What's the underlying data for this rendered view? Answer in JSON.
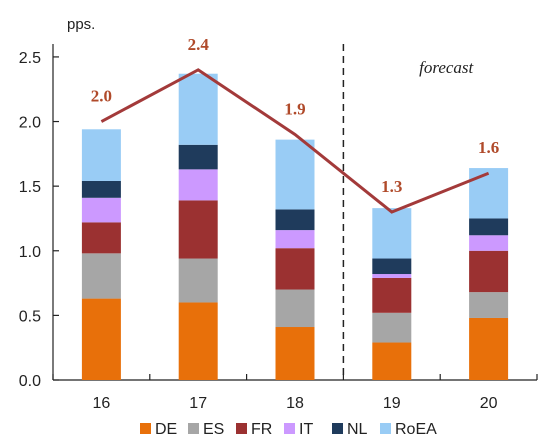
{
  "chart_data": {
    "type": "bar",
    "stacked": true,
    "unit_label": "pps.",
    "categories": [
      "16",
      "17",
      "18",
      "19",
      "20"
    ],
    "series": [
      {
        "name": "DE",
        "color": "#e8700a",
        "values": [
          0.63,
          0.6,
          0.41,
          0.29,
          0.48
        ]
      },
      {
        "name": "ES",
        "color": "#a6a6a6",
        "values": [
          0.35,
          0.34,
          0.29,
          0.23,
          0.2
        ]
      },
      {
        "name": "FR",
        "color": "#9b3131",
        "values": [
          0.24,
          0.45,
          0.32,
          0.27,
          0.32
        ]
      },
      {
        "name": "IT",
        "color": "#cc99ff",
        "values": [
          0.19,
          0.24,
          0.14,
          0.03,
          0.12
        ]
      },
      {
        "name": "NL",
        "color": "#1f3b5c",
        "values": [
          0.13,
          0.19,
          0.16,
          0.12,
          0.13
        ]
      },
      {
        "name": "RoEA",
        "color": "#99ccf5",
        "values": [
          0.4,
          0.55,
          0.54,
          0.39,
          0.39
        ]
      }
    ],
    "line": {
      "color": "#a33a3a",
      "values": [
        2.0,
        2.4,
        1.9,
        1.3,
        1.6
      ]
    },
    "data_labels": [
      "2.0",
      "2.4",
      "1.9",
      "1.3",
      "1.6"
    ],
    "y_ticks": [
      "0.0",
      "0.5",
      "1.0",
      "1.5",
      "2.0",
      "2.5"
    ],
    "ylim": [
      0,
      2.6
    ],
    "forecast_label": "forecast",
    "forecast_start_after_category": "18",
    "legend_position": "bottom",
    "grid": false
  }
}
